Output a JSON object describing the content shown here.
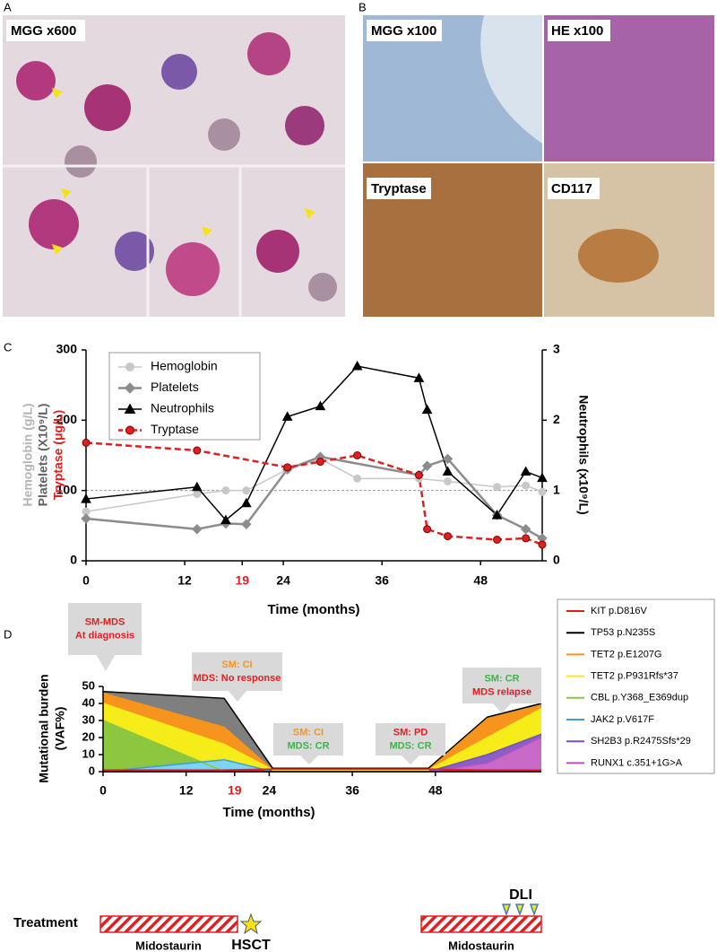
{
  "panel_labels": [
    "A",
    "B",
    "C",
    "D"
  ],
  "images": [
    "MGG x600",
    "MGG x100",
    "HE x100",
    "Tryptase",
    "CD117"
  ],
  "chart_data": [
    {
      "type": "line",
      "xlabel": "Time (months)",
      "ylabel_parts": [
        {
          "text": "Hemoglobin (g/L)",
          "color": "#b4b4b4"
        },
        {
          "text": "Platelets (X10⁹/L)",
          "color": "#606060"
        },
        {
          "text": "Tryptase (μg/L)",
          "color": "#e02020"
        }
      ],
      "y2label": "Neutrophils (x10⁹/L)",
      "xlim": [
        0,
        55.5
      ],
      "xticks": [
        0,
        12,
        19,
        24,
        36,
        48
      ],
      "xtick_colors": [
        "#000000",
        "#000000",
        "#e02020",
        "#000000",
        "#000000",
        "#000000"
      ],
      "ylim": [
        0,
        300
      ],
      "yticks": [
        0,
        100,
        200,
        300
      ],
      "y2lim": [
        0,
        3
      ],
      "y2ticks": [
        0,
        1,
        2,
        3
      ],
      "reference_line": 100,
      "legend": "top-left",
      "series": [
        {
          "name": "Hemoglobin",
          "color": "#c8c8c8",
          "marker": "circle",
          "marker_edge": "#c8c8c8",
          "line_width": 1.5,
          "dashed": false,
          "x": [
            0,
            13.5,
            17,
            19.5,
            24.5,
            28.5,
            33,
            40.5,
            44,
            50,
            53.5,
            55.5
          ],
          "values": [
            70,
            95,
            100,
            100,
            130,
            145,
            117,
            117,
            113,
            105,
            107,
            98
          ]
        },
        {
          "name": "Platelets",
          "color": "#8c8c8c",
          "marker": "diamond",
          "marker_edge": "#8c8c8c",
          "line_width": 2.5,
          "dashed": false,
          "x": [
            0,
            13.5,
            17,
            19.5,
            24.5,
            28.5,
            40.5,
            41.5,
            44,
            50,
            53.5,
            55.5
          ],
          "values": [
            60,
            45,
            53,
            52,
            130,
            148,
            122,
            135,
            145,
            65,
            45,
            32
          ]
        },
        {
          "name": "Neutrophils",
          "color": "#000000",
          "marker": "triangle",
          "marker_edge": "#000000",
          "line_width": 1.5,
          "dashed": false,
          "axis": "y2",
          "x": [
            0,
            13.5,
            17,
            19.5,
            24.5,
            28.5,
            33,
            40.5,
            41.5,
            44,
            50,
            53.5,
            55.5
          ],
          "values": [
            0.88,
            1.05,
            0.58,
            0.82,
            2.05,
            2.2,
            2.77,
            2.6,
            2.15,
            1.27,
            0.65,
            1.27,
            1.18
          ]
        },
        {
          "name": "Tryptase",
          "color": "#e02020",
          "marker": "circle",
          "marker_edge": "#7a0000",
          "line_width": 2.5,
          "dashed": true,
          "x": [
            0,
            13.5,
            24.5,
            28.5,
            33,
            40.5,
            41.5,
            44,
            50,
            53.5,
            55.5
          ],
          "values": [
            168,
            157,
            133,
            141,
            150,
            122,
            45,
            35,
            30,
            32,
            23
          ]
        }
      ]
    },
    {
      "type": "area",
      "xlabel": "Time (months)",
      "ylabel_lines": [
        "Mutational burden",
        "(VAF%)"
      ],
      "xlim": [
        0,
        63.3
      ],
      "xticks": [
        0,
        12,
        19,
        24,
        36,
        48
      ],
      "xtick_colors": [
        "#000000",
        "#000000",
        "#e02020",
        "#000000",
        "#000000",
        "#000000"
      ],
      "ylim": [
        0,
        50
      ],
      "yticks": [
        0,
        10,
        20,
        30,
        40,
        50
      ],
      "legend": "right",
      "x": [
        0,
        17.5,
        24.5,
        47,
        55.5,
        63.3
      ],
      "series": [
        {
          "name": "KIT p.D816V",
          "color": "#e02020",
          "fill": "#e02020",
          "values": [
            1,
            1,
            1.5,
            1.5,
            1,
            1
          ]
        },
        {
          "name": "TP53 p.N235S",
          "color": "#000000",
          "fill": "#7f7f7f",
          "values": [
            47,
            43,
            2,
            2,
            32,
            40
          ]
        },
        {
          "name": "TET2 p.E1207G",
          "color": "#f7941d",
          "fill": "#f7941d",
          "values": [
            46,
            26,
            1,
            1,
            31,
            39
          ]
        },
        {
          "name": "TET2 p.P931Rfs*37",
          "color": "#f5ec1a",
          "fill": "#f5ec1a",
          "values": [
            40,
            16,
            1,
            1,
            20,
            37
          ]
        },
        {
          "name": "CBL p.Y368_E369dup",
          "color": "#8dc63f",
          "fill": "#8dc63f",
          "values": [
            30,
            0,
            0,
            0,
            0,
            0
          ]
        },
        {
          "name": "JAK2 p.V617F",
          "color": "#3a9fd6",
          "fill": "#7fd3f0",
          "values": [
            0,
            7,
            0,
            0,
            0,
            0
          ]
        },
        {
          "name": "SH2B3 p.R2475Sfs*29",
          "color": "#7a4fc0",
          "fill": "#8860c8",
          "values": [
            0,
            0,
            0,
            0,
            10,
            22
          ]
        },
        {
          "name": "RUNX1 c.351+1G>A",
          "color": "#c050c0",
          "fill": "#c86ac8",
          "values": [
            0,
            0,
            0,
            0,
            5,
            20
          ]
        }
      ],
      "annotations": [
        {
          "lines": [
            {
              "text": "SM-MDS",
              "color": "#e02020"
            },
            {
              "text": "At diagnosis",
              "color": "#e02020"
            }
          ]
        },
        {
          "lines": [
            {
              "text": "SM: CI",
              "color": "#f7941d"
            },
            {
              "text": "MDS: No response",
              "color": "#e02020"
            }
          ]
        },
        {
          "lines": [
            {
              "text": "SM: CI",
              "color": "#f7941d"
            },
            {
              "text": "MDS: CR",
              "color": "#3cb44b"
            }
          ]
        },
        {
          "lines": [
            {
              "text": "SM: PD",
              "color": "#e02020"
            },
            {
              "text": "MDS: CR",
              "color": "#3cb44b"
            }
          ]
        },
        {
          "lines": [
            {
              "text": "SM: CR",
              "color": "#3cb44b"
            },
            {
              "text": "MDS relapse",
              "color": "#e02020"
            }
          ]
        }
      ]
    }
  ],
  "treatment": {
    "label": "Treatment",
    "drugs": [
      "Midostaurin",
      "Midostaurin"
    ],
    "transplant": "HSCT",
    "infusion": "DLI"
  }
}
